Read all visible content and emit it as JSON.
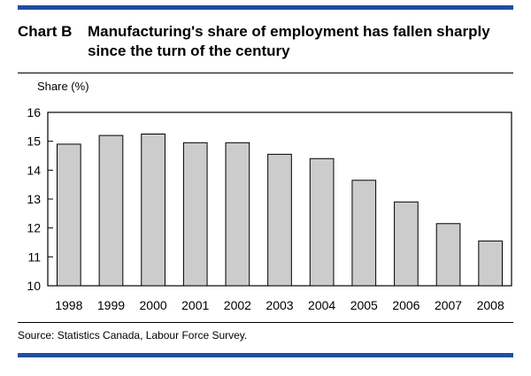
{
  "header": {
    "chart_label": "Chart B",
    "title": "Manufacturing's share of employment has fallen sharply since the turn of the century"
  },
  "source": "Source: Statistics Canada, Labour Force Survey.",
  "colors": {
    "accent": "#1f4fa0",
    "bar_fill": "#cccccc",
    "bar_stroke": "#000000"
  },
  "chart_data": {
    "type": "bar",
    "title": "Manufacturing's share of employment has fallen sharply since the turn of the century",
    "ylabel": "Share (%)",
    "xlabel": "",
    "categories": [
      "1998",
      "1999",
      "2000",
      "2001",
      "2002",
      "2003",
      "2004",
      "2005",
      "2006",
      "2007",
      "2008"
    ],
    "values": [
      14.9,
      15.2,
      15.25,
      14.95,
      14.95,
      14.55,
      14.4,
      13.65,
      12.9,
      12.15,
      11.55
    ],
    "ylim": [
      10,
      16
    ],
    "yticks": [
      10,
      11,
      12,
      13,
      14,
      15,
      16
    ],
    "grid": false,
    "legend": "none"
  }
}
